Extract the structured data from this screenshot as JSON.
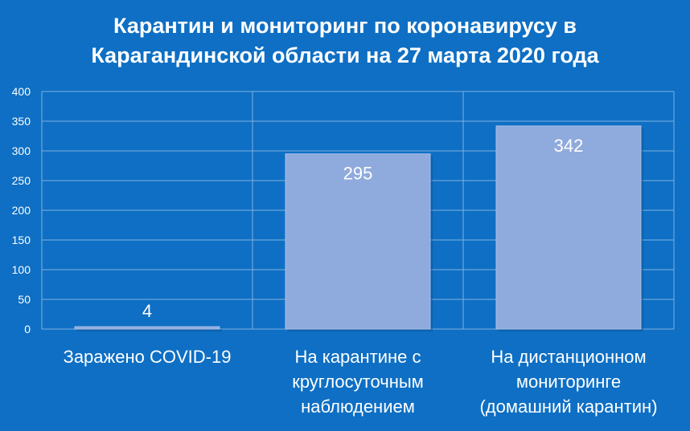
{
  "chart_data": {
    "type": "bar",
    "title_lines": [
      "Карантин и мониторинг по коронавирусу в",
      "Карагандинской области на 27 марта 2020 года"
    ],
    "categories": [
      [
        "Заражено COVID-19"
      ],
      [
        "На карантине с",
        "круглосуточным",
        "наблюдением"
      ],
      [
        "На дистанционном",
        "мониторинге",
        "(домашний карантин)"
      ]
    ],
    "values": [
      4,
      295,
      342
    ],
    "data_labels": [
      "4",
      "295",
      "342"
    ],
    "ylim": [
      0,
      400
    ],
    "yticks": [
      0,
      50,
      100,
      150,
      200,
      250,
      300,
      350,
      400
    ],
    "grid": true,
    "colors": {
      "background": "#0e6fc4",
      "bar": "#8faadc",
      "grid": "#7fb0e0",
      "text": "#ffffff"
    }
  }
}
